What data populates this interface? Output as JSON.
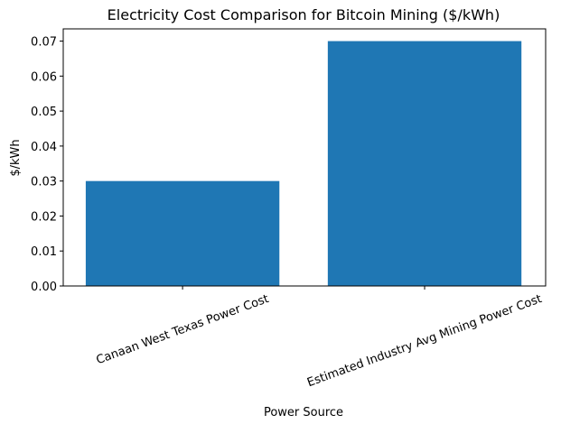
{
  "chart_data": {
    "type": "bar",
    "title": "Electricity Cost Comparison for Bitcoin Mining ($/kWh)",
    "xlabel": "Power Source",
    "ylabel": "$/kWh",
    "categories": [
      "Canaan West Texas Power Cost",
      "Estimated Industry Avg Mining Power Cost"
    ],
    "values": [
      0.03,
      0.07
    ],
    "ylim": [
      0,
      0.0735
    ],
    "yticks": [
      "0.00",
      "0.01",
      "0.02",
      "0.03",
      "0.04",
      "0.05",
      "0.06",
      "0.07"
    ],
    "bar_color": "#1f77b4",
    "grid": false
  }
}
